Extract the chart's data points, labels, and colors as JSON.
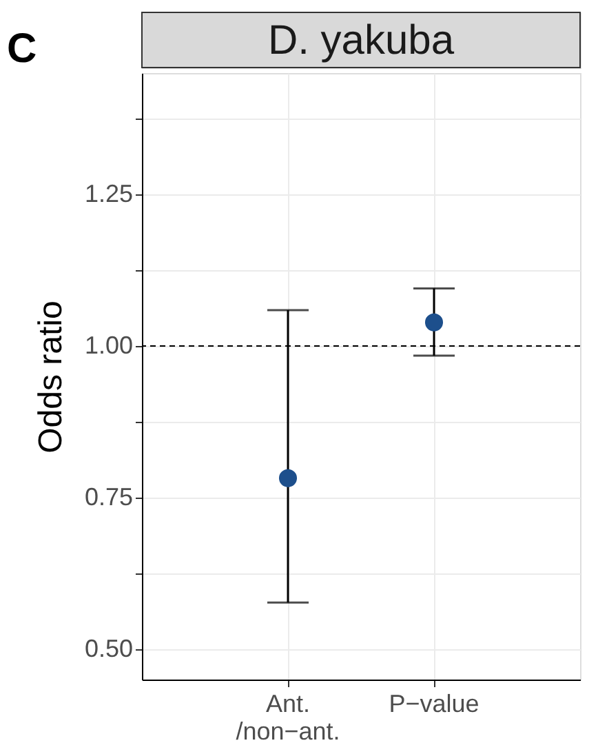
{
  "chart_data": {
    "type": "scatter",
    "title": "D. yakuba",
    "ylabel": "Odds ratio",
    "annotations": [
      "C"
    ],
    "categories": [
      "Ant. /non−ant.",
      "P−value"
    ],
    "series": [
      {
        "color": "#1d4f8c",
        "values": [
          0.782,
          1.039
        ],
        "errors": [
          [
            0.577,
            1.059
          ],
          [
            0.984,
            1.095
          ]
        ]
      }
    ],
    "ylim": [
      0.45,
      1.45
    ],
    "yticks": [
      {
        "value": 0.5,
        "label": "0.50"
      },
      {
        "value": 0.625,
        "label": null
      },
      {
        "value": 0.75,
        "label": "0.75"
      },
      {
        "value": 0.875,
        "label": null
      },
      {
        "value": 1.0,
        "label": "1.00"
      },
      {
        "value": 1.125,
        "label": null
      },
      {
        "value": 1.25,
        "label": "1.25"
      },
      {
        "value": 1.375,
        "label": null
      }
    ],
    "ref_lines": [
      {
        "axis": "y",
        "value": 1.0,
        "line_style": "dashed",
        "color": "#000000"
      }
    ],
    "grid": true,
    "marker": "circle",
    "legend": false
  }
}
